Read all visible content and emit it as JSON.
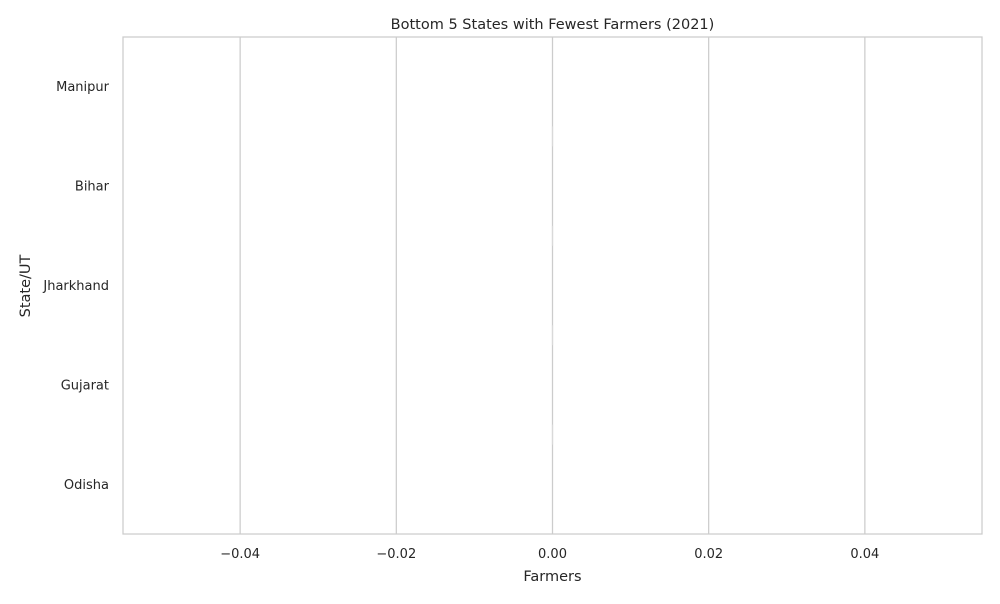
{
  "chart_data": {
    "type": "bar",
    "orientation": "horizontal",
    "title": "Bottom 5 States with Fewest Farmers (2021)",
    "xlabel": "Farmers",
    "ylabel": "State/UT",
    "categories": [
      "Manipur",
      "Bihar",
      "Jharkhand",
      "Gujarat",
      "Odisha"
    ],
    "values": [
      0,
      0,
      0,
      0,
      0
    ],
    "xlim": [
      -0.055,
      0.055
    ],
    "xticks": [
      -0.04,
      -0.02,
      0.0,
      0.02,
      0.04
    ],
    "xtick_labels": [
      "−0.04",
      "−0.02",
      "0.00",
      "0.02",
      "0.04"
    ],
    "grid": true,
    "colors": {
      "grid": "#cccccc",
      "spine": "#cccccc",
      "text": "#262626",
      "background": "#ffffff"
    }
  }
}
